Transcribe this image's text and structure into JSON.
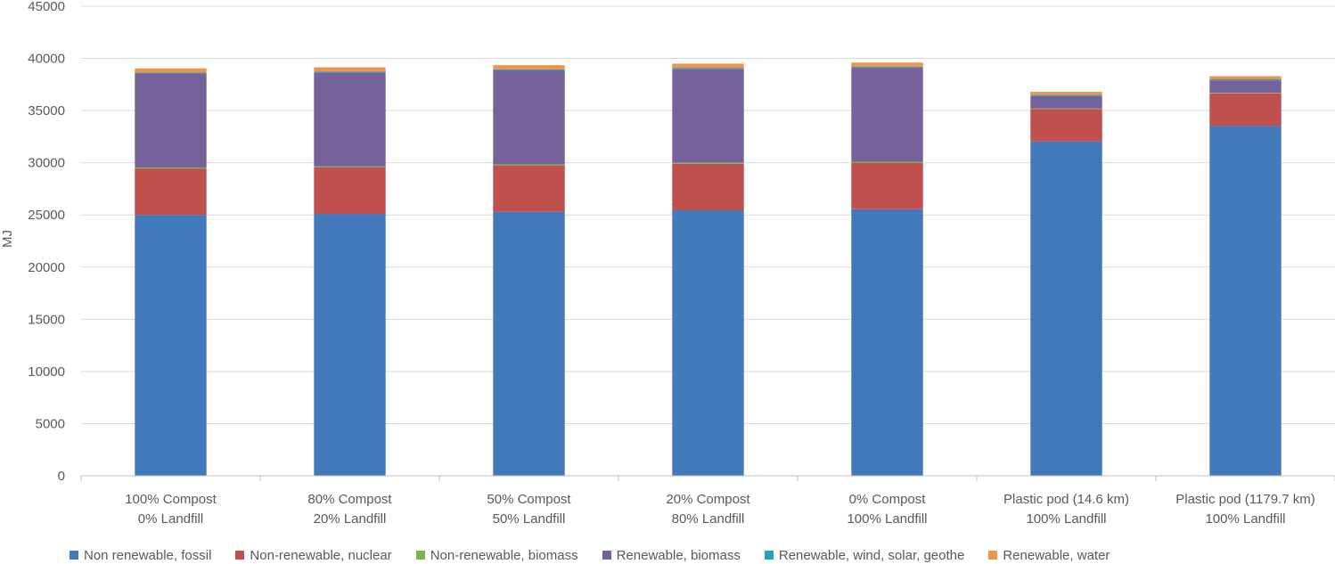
{
  "chart_data": {
    "type": "bar",
    "stacked": true,
    "title": "",
    "xlabel": "",
    "ylabel": "MJ",
    "ylim": [
      0,
      45000
    ],
    "yticks": [
      0,
      5000,
      10000,
      15000,
      20000,
      25000,
      30000,
      35000,
      40000,
      45000
    ],
    "grid": true,
    "legend_position": "bottom",
    "categories": [
      [
        "100% Compost",
        "0% Landfill"
      ],
      [
        "80% Compost",
        "20% Landfill"
      ],
      [
        "50% Compost",
        "50% Landfill"
      ],
      [
        "20% Compost",
        "80% Landfill"
      ],
      [
        "0% Compost",
        "100% Landfill"
      ],
      [
        "Plastic pod (14.6 km)",
        "100% Landfill"
      ],
      [
        "Plastic pod (1179.7 km)",
        "100% Landfill"
      ]
    ],
    "series": [
      {
        "name": "Non renewable, fossil",
        "color": "#4379BA",
        "values": [
          25000,
          25100,
          25300,
          25450,
          25550,
          32050,
          33550
        ]
      },
      {
        "name": "Non-renewable, nuclear",
        "color": "#C0504D",
        "values": [
          4450,
          4450,
          4450,
          4450,
          4450,
          3100,
          3100
        ]
      },
      {
        "name": "Non-renewable, biomass",
        "color": "#7DB14A",
        "values": [
          100,
          100,
          100,
          100,
          100,
          50,
          50
        ]
      },
      {
        "name": "Renewable, biomass",
        "color": "#76629B",
        "values": [
          9000,
          9000,
          9000,
          9000,
          9000,
          1200,
          1200
        ]
      },
      {
        "name": "Renewable, wind, solar, geothe",
        "color": "#2AA1B8",
        "values": [
          100,
          100,
          100,
          100,
          100,
          100,
          100
        ]
      },
      {
        "name": "Renewable, water",
        "color": "#EE9548",
        "values": [
          400,
          400,
          400,
          400,
          400,
          300,
          300
        ]
      }
    ]
  }
}
